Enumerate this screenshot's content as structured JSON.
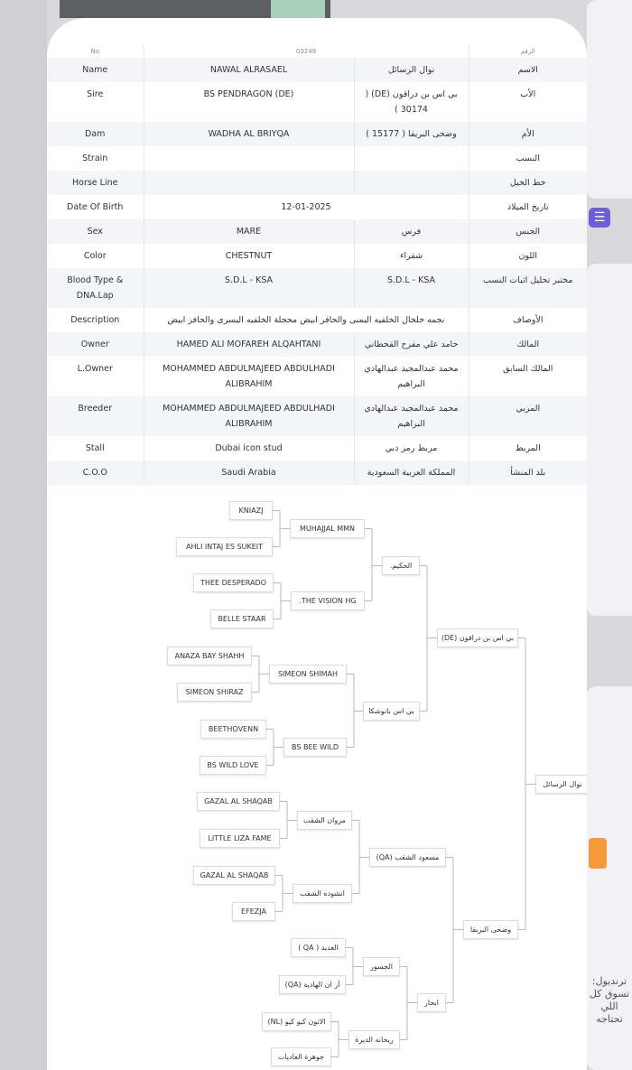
{
  "table": {
    "rows": [
      {
        "label_en": "No",
        "value_en": "03249",
        "value_ar": "",
        "label_ar": "الرقم",
        "span": true
      },
      {
        "label_en": "Name",
        "value_en": "NAWAL ALRASAEL",
        "value_ar": "نوال الرسائل",
        "label_ar": "الاسم"
      },
      {
        "label_en": "Sire",
        "value_en": "BS PENDRAGON (DE)",
        "value_ar": "بي اس بن دراقون (DE) ( 30174 )",
        "label_ar": "الأب"
      },
      {
        "label_en": "Dam",
        "value_en": "WADHA AL BRIYQA",
        "value_ar": "وضحى البريقا ( 15177 )",
        "label_ar": "الأم"
      },
      {
        "label_en": "Strain",
        "value_en": "",
        "value_ar": "",
        "label_ar": "النسب"
      },
      {
        "label_en": "Horse Line",
        "value_en": "",
        "value_ar": "",
        "label_ar": "خط الخيل"
      },
      {
        "label_en": "Date Of Birth",
        "value_en": "12-01-2025",
        "value_ar": "",
        "label_ar": "تاريخ الميلاد",
        "span": true
      },
      {
        "label_en": "Sex",
        "value_en": "MARE",
        "value_ar": "فرس",
        "label_ar": "الجنس"
      },
      {
        "label_en": "Color",
        "value_en": "CHESTNUT",
        "value_ar": "شقراء",
        "label_ar": "اللون"
      },
      {
        "label_en": "Blood Type & DNA.Lap",
        "value_en": "S.D.L - KSA",
        "value_ar": "S.D.L - KSA",
        "label_ar": "مختبر تحليل اثبات النسب"
      },
      {
        "label_en": "Description",
        "value_en": "نجمه خلخال الخلفيه اليمنى والحافر ابيض محجلة الخلفيه اليسرى والحافر ابيض",
        "value_ar": "",
        "label_ar": "الأوصاف",
        "span": true
      },
      {
        "label_en": "Owner",
        "value_en": "HAMED ALI MOFAREH ALQAHTANI",
        "value_ar": "حامد علي مفرح القحطاني",
        "label_ar": "المالك"
      },
      {
        "label_en": "L.Owner",
        "value_en": "MOHAMMED ABDULMAJEED ABDULHADI ALIBRAHIM",
        "value_ar": "محمد عبدالمجيد عبدالهادي البراهيم",
        "label_ar": "المالك السابق"
      },
      {
        "label_en": "Breeder",
        "value_en": "MOHAMMED ABDULMAJEED ABDULHADI ALIBRAHIM",
        "value_ar": "محمد عبدالمجيد عبدالهادي البراهيم",
        "label_ar": "المربي"
      },
      {
        "label_en": "Stall",
        "value_en": "Dubai icon stud",
        "value_ar": "مربط رمز دبي",
        "label_ar": "المربط"
      },
      {
        "label_en": "C.O.O",
        "value_en": "Saudi Arabia",
        "value_ar": "المملكة العربية السعودية",
        "label_ar": "بلد المنشأ"
      }
    ]
  },
  "pedigree": {
    "horse": "نوال الرسائل",
    "sire": "بي اس بن دراقون (DE)",
    "dam": "وضحى البريقا",
    "sire_sire": "الحكيم.",
    "sire_dam": "بي اس بانوشكا",
    "dam_sire": "مسعود الشقب (QA)",
    "dam_dam": "ابحار",
    "g3": [
      "MUHAJJAL MMN",
      ".THE VISION HG",
      "SIMEON SHIMAH",
      "BS BEE WILD",
      "مروان الشقب",
      "انشوده الشقب",
      "الجسور",
      "ريحانه الديرة"
    ],
    "g4": [
      "KNIAZJ",
      "AHLI INTAJ ES SUKEIT",
      "THEE DESPERADO",
      "BELLE STAAR",
      "ANAZA BAY SHAHH",
      "SIMEON SHIRAZ",
      "BEETHOVENN",
      "BS WILD LOVE",
      "GAZAL AL SHAQAB",
      "LITTLE LIZA FAME",
      "GAZAL AL SHAQAB",
      "EFEZJA",
      "العديد ( QA )",
      "آر ان الهادية (QA)",
      "الاتون كيو كيو (NL)",
      "جوهرة العاديات"
    ]
  },
  "background": {
    "bottom_text": "ترنديول: تسوق كل اللي تحتاجه",
    "list_icon": "list-icon",
    "accent_purple": "#6b5fd6",
    "accent_orange": "#f39a3a"
  }
}
